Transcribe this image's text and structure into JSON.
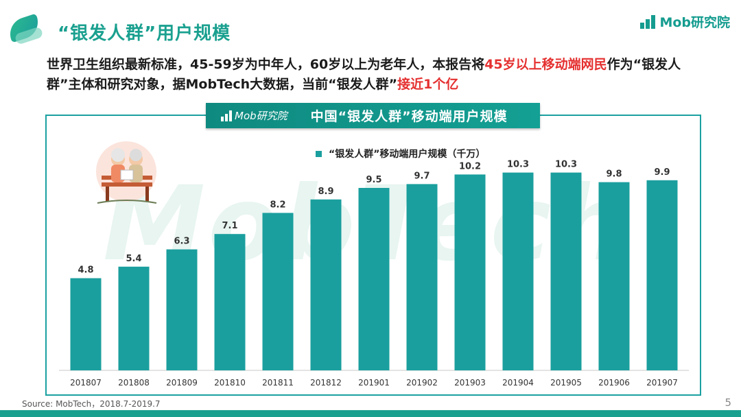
{
  "title": "“银发人群”用户规模",
  "brand": {
    "name": "Mob研究院"
  },
  "subtitle": {
    "part1": "世界卫生组织最新标准，45-59岁为中年人，60岁以上为老年人，本报告将",
    "highlight1": "45岁以上移动端网民",
    "part2": "作为“银发人群”主体和研究对象，据MobTech大数据，当前“银发人群”",
    "highlight2": "接近1个亿"
  },
  "panel": {
    "logo_text": "Mob研究院",
    "title": "中国“银发人群”移动端用户规模"
  },
  "watermark": "MobTech",
  "colors": {
    "accent": "#1aa08f",
    "bar": "#1a9f9e",
    "highlight": "#e53030"
  },
  "chart_data": {
    "type": "bar",
    "title": "中国“银发人群”移动端用户规模",
    "legend": "“银发人群”移动端用户规模（千万）",
    "categories": [
      "201807",
      "201808",
      "201809",
      "201810",
      "201811",
      "201812",
      "201901",
      "201902",
      "201903",
      "201904",
      "201905",
      "201906",
      "201907"
    ],
    "series": [
      {
        "name": "“银发人群”移动端用户规模（千万）",
        "values": [
          4.8,
          5.4,
          6.3,
          7.1,
          8.2,
          8.9,
          9.5,
          9.7,
          10.2,
          10.3,
          10.3,
          9.8,
          9.9
        ]
      }
    ],
    "ylim": [
      0,
      11.5
    ],
    "xlabel": "",
    "ylabel": ""
  },
  "footer": {
    "source": "Source: MobTech，2018.7-2019.7",
    "page": "5"
  }
}
